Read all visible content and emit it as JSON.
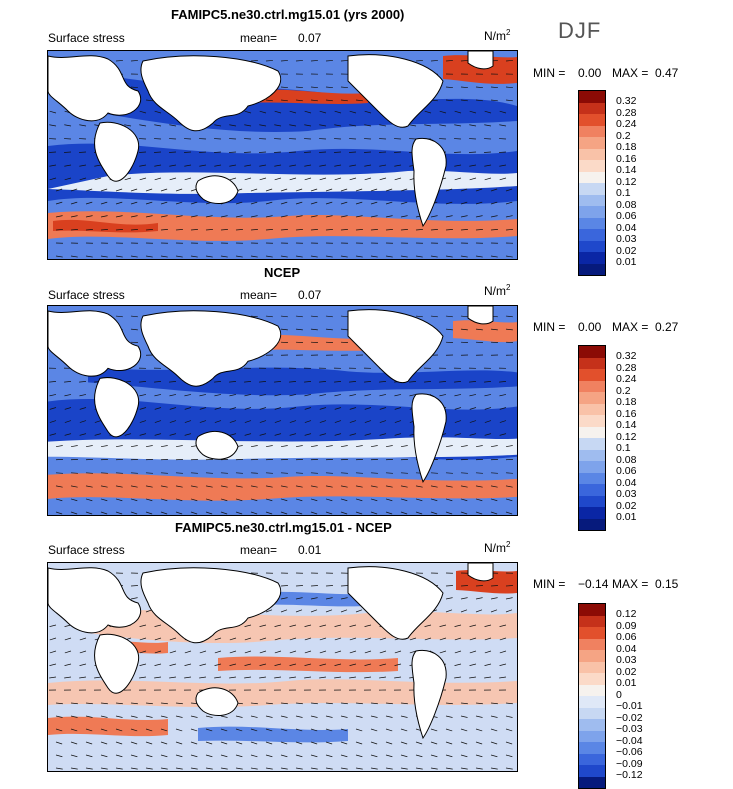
{
  "season": "DJF",
  "colors": {
    "land": "#ffffff",
    "coast": "#000000",
    "deep_blue": "#1a44c8",
    "mid_blue": "#5b86e5",
    "pale": "#e6eef9",
    "orange": "#ef7a55",
    "red": "#d9401f"
  },
  "panels": [
    {
      "title": "FAMIPC5.ne30.ctrl.mg15.01 (yrs 2000)",
      "field": "Surface stress",
      "mean_label": "mean=",
      "mean_value": "0.07",
      "unit": "N/m",
      "unit_exp": "2",
      "min_label": "MIN =",
      "min_value": "0.00",
      "max_label": "MAX =",
      "max_value": "0.47",
      "levels": [
        "0.32",
        "0.28",
        "0.24",
        "0.2",
        "0.18",
        "0.16",
        "0.14",
        "0.12",
        "0.1",
        "0.08",
        "0.06",
        "0.04",
        "0.03",
        "0.02",
        "0.01"
      ],
      "colors": [
        "#8b0b05",
        "#c5311a",
        "#e2502c",
        "#f08160",
        "#f5a484",
        "#f9c2a8",
        "#fbdac8",
        "#f6f2ee",
        "#c7d8f3",
        "#9fbcef",
        "#7ea3eb",
        "#5a86e5",
        "#3a66dc",
        "#1f48cb",
        "#0a26a5",
        "#061a7c"
      ]
    },
    {
      "title": "NCEP",
      "field": "Surface stress",
      "mean_label": "mean=",
      "mean_value": "0.07",
      "unit": "N/m",
      "unit_exp": "2",
      "min_label": "MIN =",
      "min_value": "0.00",
      "max_label": "MAX =",
      "max_value": "0.27",
      "levels": [
        "0.32",
        "0.28",
        "0.24",
        "0.2",
        "0.18",
        "0.16",
        "0.14",
        "0.12",
        "0.1",
        "0.08",
        "0.06",
        "0.04",
        "0.03",
        "0.02",
        "0.01"
      ],
      "colors": [
        "#8b0b05",
        "#c5311a",
        "#e2502c",
        "#f08160",
        "#f5a484",
        "#f9c2a8",
        "#fbdac8",
        "#f6f2ee",
        "#c7d8f3",
        "#9fbcef",
        "#7ea3eb",
        "#5a86e5",
        "#3a66dc",
        "#1f48cb",
        "#0a26a5",
        "#061a7c"
      ]
    },
    {
      "title": "FAMIPC5.ne30.ctrl.mg15.01 - NCEP",
      "field": "Surface stress",
      "mean_label": "mean=",
      "mean_value": "0.01",
      "unit": "N/m",
      "unit_exp": "2",
      "min_label": "MIN =",
      "min_value": "−0.14",
      "max_label": "MAX =",
      "max_value": "0.15",
      "levels": [
        "0.12",
        "0.09",
        "0.06",
        "0.04",
        "0.03",
        "0.02",
        "0.01",
        "0",
        "−0.01",
        "−0.02",
        "−0.03",
        "−0.04",
        "−0.06",
        "−0.09",
        "−0.12"
      ],
      "colors": [
        "#8b0b05",
        "#c5311a",
        "#e2502c",
        "#f08160",
        "#f5a484",
        "#f9c2a8",
        "#fbdac8",
        "#f6f2ee",
        "#dfe8f7",
        "#c7d8f3",
        "#9fbcef",
        "#7ea3eb",
        "#5a86e5",
        "#3a66dc",
        "#1f48cb",
        "#061a7c"
      ]
    }
  ]
}
